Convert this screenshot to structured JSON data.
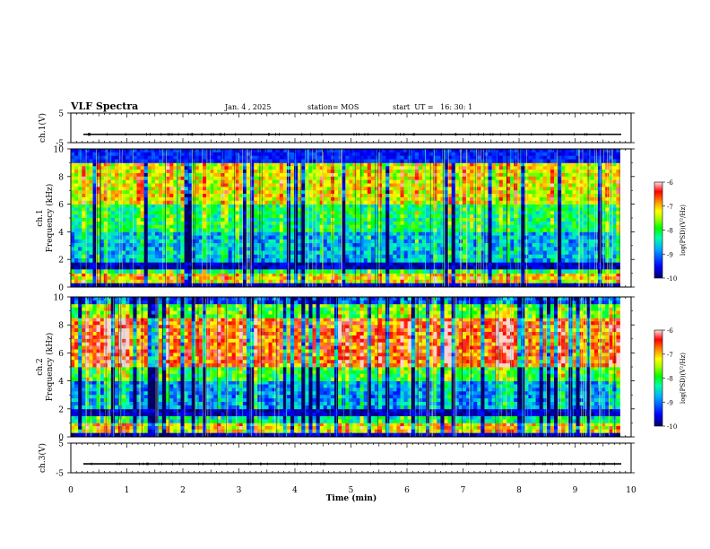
{
  "header": {
    "title": "VLF Spectra",
    "date": "Jan. 4 , 2025",
    "station": "station= MOS",
    "start_ut": "start  UT =   16: 30: 1"
  },
  "chart_data": [
    {
      "type": "line",
      "panel": "ch1-waveform",
      "ylabel": "ch.1(V)",
      "ylim": [
        -5,
        5
      ],
      "yticks": [
        "5",
        "-5"
      ],
      "xlim": [
        0,
        10
      ],
      "series": [
        {
          "values_approx_constant": -2.2
        }
      ]
    },
    {
      "type": "heatmap",
      "panel": "ch1-spectrogram",
      "ylabel": "ch.1\nFrequency (kHz)",
      "ylim": [
        0,
        10
      ],
      "yticks": [
        "0",
        "2",
        "4",
        "6",
        "8",
        "10"
      ],
      "xlim": [
        0,
        10
      ],
      "data_end_min": 9.8,
      "colorbar": {
        "label": "log(PSD)(V²/Hz)",
        "range": [
          -10,
          -6
        ],
        "ticks": [
          "-6",
          "-7",
          "-8",
          "-9",
          "-10"
        ]
      },
      "bands": [
        {
          "freq": [
            0,
            0.3
          ],
          "level": -10.0
        },
        {
          "freq": [
            0.3,
            1.0
          ],
          "level": -7.2
        },
        {
          "freq": [
            1.0,
            1.3
          ],
          "level": -8.2
        },
        {
          "freq": [
            1.3,
            1.8
          ],
          "level": -10.0
        },
        {
          "freq": [
            1.8,
            4.0
          ],
          "level": -8.8
        },
        {
          "freq": [
            4.0,
            6.0
          ],
          "level": -8.2
        },
        {
          "freq": [
            6.0,
            9.0
          ],
          "level": -7.3
        },
        {
          "freq": [
            9.0,
            10.0
          ],
          "level": -9.7
        }
      ]
    },
    {
      "type": "heatmap",
      "panel": "ch2-spectrogram",
      "ylabel": "ch.2\nFrequency (kHz)",
      "ylim": [
        0,
        10
      ],
      "yticks": [
        "0",
        "2",
        "4",
        "6",
        "8",
        "10"
      ],
      "xlim": [
        0,
        10
      ],
      "data_end_min": 9.8,
      "colorbar": {
        "label": "log(PSD)(V²/Hz)",
        "range": [
          -10,
          -6
        ],
        "ticks": [
          "-6",
          "-7",
          "-8",
          "-9",
          "-10"
        ]
      },
      "bands": [
        {
          "freq": [
            0,
            0.3
          ],
          "level": -10.0
        },
        {
          "freq": [
            0.3,
            1.0
          ],
          "level": -7.2
        },
        {
          "freq": [
            1.0,
            1.5
          ],
          "level": -8.4
        },
        {
          "freq": [
            1.5,
            2.0
          ],
          "level": -10.0
        },
        {
          "freq": [
            2.0,
            4.0
          ],
          "level": -8.9
        },
        {
          "freq": [
            4.0,
            5.0
          ],
          "level": -8.0
        },
        {
          "freq": [
            5.0,
            8.5
          ],
          "level": -6.7
        },
        {
          "freq": [
            8.5,
            9.5
          ],
          "level": -7.8
        },
        {
          "freq": [
            9.5,
            10.0
          ],
          "level": -9.3
        }
      ]
    },
    {
      "type": "line",
      "panel": "ch3-waveform",
      "ylabel": "ch.3(V)",
      "ylim": [
        -5,
        5
      ],
      "yticks": [
        "5",
        "-5"
      ],
      "xlim": [
        0,
        10
      ],
      "series": [
        {
          "values_approx_constant": -2.0
        }
      ]
    }
  ],
  "xaxis": {
    "label": "Time  (min)",
    "ticks": [
      "0",
      "1",
      "2",
      "3",
      "4",
      "5",
      "6",
      "7",
      "8",
      "9",
      "10"
    ]
  },
  "colors": {
    "colormap": [
      "#00008b",
      "#0000ff",
      "#00aaff",
      "#00ffcc",
      "#00ff00",
      "#aaff00",
      "#ffff00",
      "#ff9900",
      "#ff0000",
      "#ffffff"
    ]
  }
}
